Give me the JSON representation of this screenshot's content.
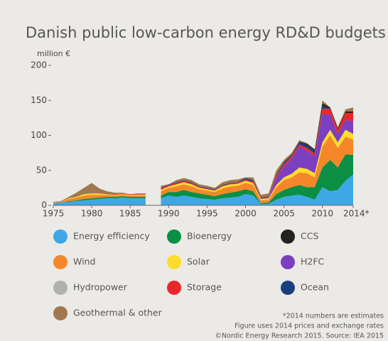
{
  "chart_data": {
    "type": "stacked_area",
    "title": "Danish public low-carbon energy RD&D budgets",
    "y_label": "million €",
    "footnotes": [
      "*2014 numbers are estimates",
      "Figure uses 2014 prices and exchange rates",
      "©Nordic Energy Research 2015. Source: IEA 2015"
    ],
    "x": [
      1975,
      1976,
      1977,
      1978,
      1979,
      1980,
      1981,
      1982,
      1983,
      1984,
      1985,
      1986,
      1987,
      1988,
      1989,
      1990,
      1991,
      1992,
      1993,
      1994,
      1995,
      1996,
      1997,
      1998,
      1999,
      2000,
      2001,
      2002,
      2003,
      2004,
      2005,
      2006,
      2007,
      2008,
      2009,
      2010,
      2011,
      2012,
      2013,
      2014
    ],
    "xlim": [
      1975,
      2014
    ],
    "xticks": [
      1975,
      1980,
      1985,
      1990,
      1995,
      2000,
      2005,
      2010,
      {
        "value": 2014,
        "label": "2014*"
      }
    ],
    "ylim": [
      0,
      200
    ],
    "yticks": [
      0,
      50,
      100,
      150,
      200
    ],
    "grid": false,
    "legend_order": [
      0,
      1,
      8,
      2,
      3,
      4,
      5,
      6,
      7,
      9
    ],
    "series": [
      {
        "name": "Energy efficiency",
        "color": "#3ea8e6",
        "values": [
          3,
          4,
          5,
          6,
          7,
          8,
          9,
          10,
          10,
          11,
          10,
          10,
          10,
          null,
          10,
          14,
          12,
          14,
          12,
          10,
          9,
          8,
          10,
          11,
          12,
          16,
          14,
          2,
          2,
          8,
          12,
          14,
          15,
          12,
          8,
          26,
          20,
          22,
          35,
          44
        ]
      },
      {
        "name": "Bioenergy",
        "color": "#0a8f45",
        "values": [
          0,
          0,
          1,
          1,
          2,
          2,
          2,
          2,
          2,
          2,
          2,
          2,
          2,
          null,
          4,
          5,
          7,
          8,
          7,
          7,
          6,
          5,
          6,
          7,
          8,
          7,
          6,
          1,
          2,
          8,
          10,
          12,
          14,
          14,
          18,
          28,
          45,
          32,
          38,
          28
        ]
      },
      {
        "name": "Wind",
        "color": "#f5872a",
        "values": [
          1,
          1,
          3,
          4,
          5,
          5,
          4,
          3,
          2,
          2,
          2,
          2,
          2,
          null,
          6,
          6,
          8,
          8,
          8,
          6,
          6,
          6,
          8,
          9,
          8,
          9,
          9,
          4,
          4,
          10,
          14,
          14,
          18,
          20,
          14,
          30,
          35,
          28,
          25,
          22
        ]
      },
      {
        "name": "Solar",
        "color": "#fddc2a",
        "values": [
          0,
          0,
          1,
          1,
          2,
          2,
          2,
          1,
          1,
          1,
          1,
          1,
          1,
          null,
          2,
          2,
          3,
          3,
          3,
          2,
          2,
          2,
          3,
          3,
          3,
          3,
          3,
          2,
          2,
          3,
          4,
          5,
          7,
          6,
          6,
          6,
          8,
          8,
          10,
          8
        ]
      },
      {
        "name": "H2FC",
        "color": "#7b3fbf",
        "values": [
          0,
          0,
          0,
          0,
          0,
          0,
          0,
          0,
          0,
          0,
          0,
          0,
          0,
          null,
          0,
          0,
          0,
          0,
          0,
          0,
          0,
          0,
          0,
          0,
          0,
          0,
          0,
          0,
          1,
          10,
          16,
          22,
          30,
          26,
          24,
          40,
          22,
          12,
          14,
          18
        ]
      },
      {
        "name": "Hydropower",
        "color": "#b0b0b0",
        "values": [
          0,
          0,
          0,
          0,
          0,
          0,
          0,
          0,
          0,
          0,
          0,
          0,
          0,
          null,
          0,
          0,
          0,
          0,
          0,
          0,
          0,
          0,
          0,
          0,
          0,
          0,
          0,
          0,
          0,
          0,
          0,
          0,
          0,
          0,
          0,
          0,
          0,
          0,
          0,
          0
        ]
      },
      {
        "name": "Storage",
        "color": "#e8282c",
        "values": [
          0,
          0,
          0,
          0,
          0,
          0,
          1,
          1,
          1,
          1,
          1,
          1,
          1,
          null,
          2,
          2,
          2,
          2,
          2,
          1,
          1,
          1,
          1,
          1,
          1,
          2,
          2,
          1,
          1,
          3,
          3,
          3,
          3,
          4,
          4,
          8,
          8,
          6,
          10,
          12
        ]
      },
      {
        "name": "Ocean",
        "color": "#1a3f80",
        "values": [
          0,
          0,
          0,
          0,
          0,
          0,
          0,
          0,
          0,
          0,
          0,
          0,
          0,
          null,
          1,
          1,
          1,
          1,
          1,
          1,
          1,
          1,
          1,
          1,
          1,
          2,
          2,
          1,
          1,
          1,
          2,
          1,
          3,
          4,
          4,
          4,
          0,
          0,
          0,
          0
        ]
      },
      {
        "name": "CCS",
        "color": "#222222",
        "values": [
          0,
          0,
          0,
          0,
          0,
          0,
          0,
          0,
          0,
          0,
          0,
          0,
          0,
          null,
          0,
          0,
          0,
          0,
          0,
          0,
          0,
          0,
          0,
          0,
          0,
          0,
          0,
          0,
          0,
          1,
          1,
          1,
          1,
          2,
          2,
          4,
          2,
          2,
          2,
          2
        ]
      },
      {
        "name": "Geothermal & other",
        "color": "#a07850",
        "values": [
          1,
          1,
          2,
          6,
          9,
          15,
          6,
          3,
          2,
          1,
          0,
          1,
          1,
          null,
          3,
          0,
          3,
          3,
          3,
          3,
          3,
          2,
          4,
          4,
          4,
          1,
          4,
          4,
          4,
          6,
          3,
          3,
          2,
          1,
          0,
          4,
          0,
          2,
          3,
          6
        ]
      }
    ]
  }
}
